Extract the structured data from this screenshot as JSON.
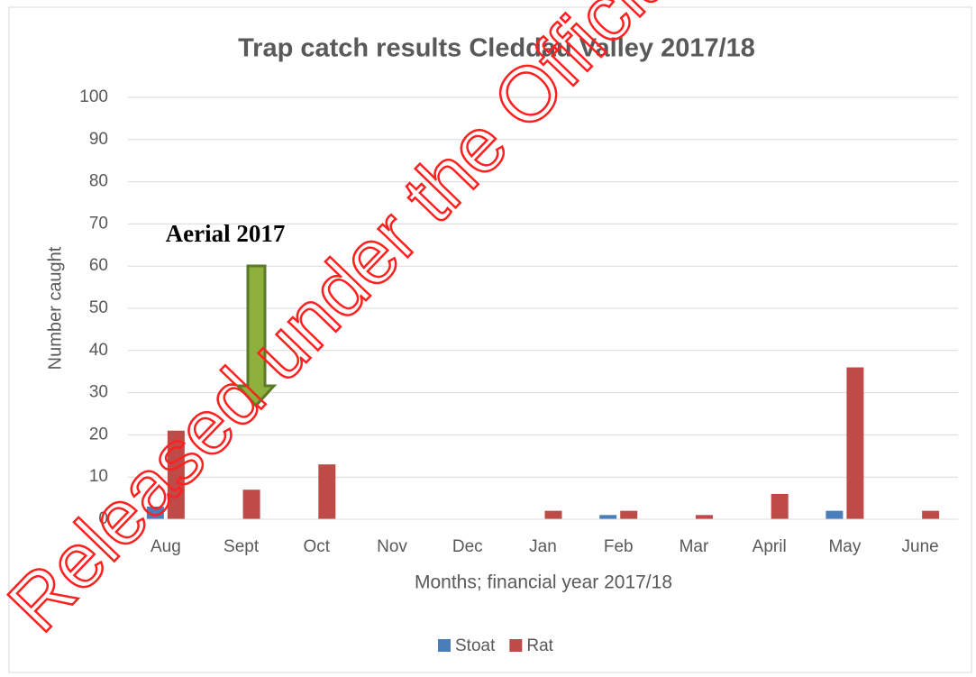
{
  "chart_data": {
    "type": "bar",
    "title": "Trap catch results Cleddau Valley 2017/18",
    "x_label": "Months; financial year 2017/18",
    "y_label": "Number caught",
    "annotation": "Aerial 2017",
    "watermark": "Released under the Official",
    "categories": [
      "Aug",
      "Sept",
      "Oct",
      "Nov",
      "Dec",
      "Jan",
      "Feb",
      "Mar",
      "April",
      "May",
      "June"
    ],
    "series": [
      {
        "name": "Stoat",
        "color": "#4a7ebb",
        "values": [
          3,
          0,
          0,
          0,
          0,
          0,
          1,
          0,
          0,
          2,
          0
        ]
      },
      {
        "name": "Rat",
        "color": "#be4b48",
        "values": [
          21,
          7,
          13,
          0,
          0,
          2,
          2,
          1,
          6,
          36,
          2
        ]
      }
    ],
    "ylim": [
      0,
      100
    ],
    "yticks": [
      0,
      10,
      20,
      30,
      40,
      50,
      60,
      70,
      80,
      90,
      100
    ],
    "grid": true,
    "legend": "bottom"
  }
}
